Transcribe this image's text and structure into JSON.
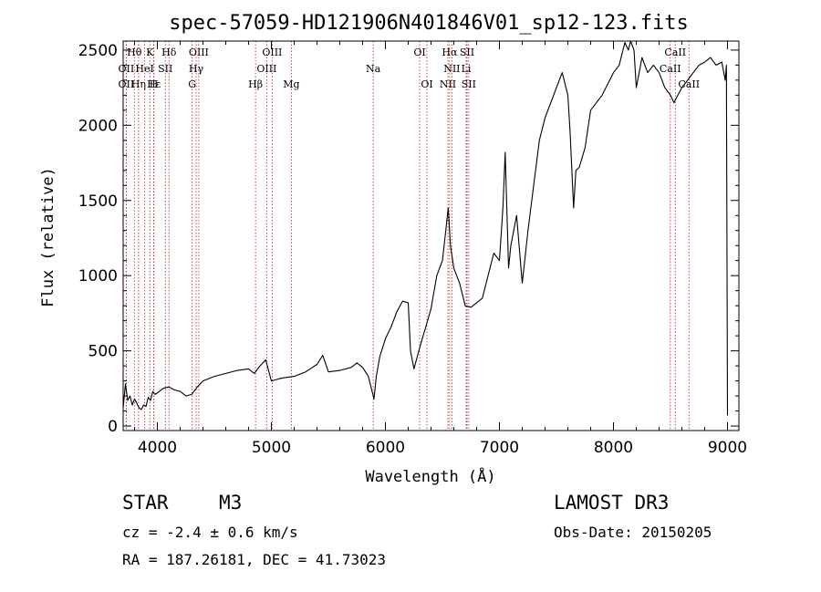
{
  "chart_data": {
    "type": "line",
    "title": "spec-57059-HD121906N401846V01_sp12-123.fits",
    "xlabel": "Wavelength (Å)",
    "ylabel": "Flux (relative)",
    "xlim": [
      3700,
      9100
    ],
    "ylim": [
      -30,
      2560
    ],
    "xticks": [
      4000,
      5000,
      6000,
      7000,
      8000,
      9000
    ],
    "yticks": [
      0,
      500,
      1000,
      1500,
      2000,
      2500
    ],
    "grid": false,
    "series": [
      {
        "name": "spectrum",
        "x": [
          3700,
          3720,
          3740,
          3760,
          3780,
          3800,
          3820,
          3840,
          3860,
          3880,
          3900,
          3920,
          3940,
          3960,
          3980,
          4000,
          4050,
          4100,
          4150,
          4200,
          4250,
          4300,
          4350,
          4400,
          4500,
          4600,
          4700,
          4800,
          4850,
          4900,
          4950,
          5000,
          5050,
          5100,
          5200,
          5300,
          5400,
          5450,
          5500,
          5600,
          5700,
          5750,
          5800,
          5850,
          5900,
          5920,
          5950,
          6000,
          6050,
          6100,
          6150,
          6200,
          6220,
          6250,
          6300,
          6350,
          6400,
          6450,
          6500,
          6530,
          6550,
          6570,
          6600,
          6650,
          6700,
          6750,
          6800,
          6850,
          6900,
          6950,
          7000,
          7030,
          7050,
          7080,
          7100,
          7150,
          7200,
          7250,
          7300,
          7350,
          7400,
          7450,
          7500,
          7550,
          7600,
          7620,
          7650,
          7670,
          7700,
          7750,
          7800,
          7900,
          8000,
          8050,
          8100,
          8130,
          8150,
          8180,
          8200,
          8250,
          8300,
          8350,
          8400,
          8450,
          8500,
          8530,
          8550,
          8600,
          8650,
          8700,
          8750,
          8800,
          8850,
          8900,
          8950,
          8980,
          8990,
          9000
        ],
        "y": [
          120,
          280,
          170,
          200,
          140,
          180,
          150,
          120,
          110,
          140,
          130,
          190,
          170,
          230,
          210,
          220,
          250,
          260,
          240,
          230,
          200,
          210,
          260,
          300,
          330,
          350,
          370,
          380,
          350,
          400,
          440,
          300,
          310,
          320,
          330,
          360,
          410,
          470,
          360,
          370,
          390,
          420,
          390,
          330,
          180,
          330,
          460,
          580,
          660,
          760,
          830,
          820,
          500,
          380,
          520,
          650,
          780,
          1000,
          1100,
          1300,
          1450,
          1200,
          1050,
          950,
          800,
          790,
          820,
          850,
          1000,
          1150,
          1100,
          1450,
          1820,
          1050,
          1200,
          1400,
          950,
          1300,
          1600,
          1900,
          2050,
          2150,
          2250,
          2350,
          2200,
          1950,
          1450,
          1700,
          1720,
          1850,
          2100,
          2200,
          2350,
          2400,
          2550,
          2500,
          2560,
          2500,
          2250,
          2450,
          2350,
          2400,
          2350,
          2250,
          2200,
          2150,
          2180,
          2250,
          2300,
          2350,
          2400,
          2420,
          2450,
          2400,
          2420,
          2300,
          2400,
          70
        ]
      }
    ],
    "lines": [
      {
        "label": "Hθ",
        "x": 3798,
        "row": 0
      },
      {
        "label": "K",
        "x": 3934,
        "row": 0
      },
      {
        "label": "Hδ",
        "x": 4102,
        "row": 0
      },
      {
        "label": "OIII",
        "x": 4363,
        "row": 0
      },
      {
        "label": "OIII",
        "x": 5007,
        "row": 0
      },
      {
        "label": "OI",
        "x": 6300,
        "row": 0
      },
      {
        "label": "Hα",
        "x": 6563,
        "row": 0
      },
      {
        "label": "SII",
        "x": 6716,
        "row": 0
      },
      {
        "label": "CaII",
        "x": 8542,
        "row": 0
      },
      {
        "label": "OII",
        "x": 3727,
        "row": 1
      },
      {
        "label": "HeI",
        "x": 3889,
        "row": 1
      },
      {
        "label": "SII",
        "x": 4070,
        "row": 1
      },
      {
        "label": "Hγ",
        "x": 4340,
        "row": 1
      },
      {
        "label": "OIII",
        "x": 4959,
        "row": 1
      },
      {
        "label": "Na",
        "x": 5893,
        "row": 1
      },
      {
        "label": "NII",
        "x": 6583,
        "row": 1
      },
      {
        "label": "Li",
        "x": 6708,
        "row": 1
      },
      {
        "label": "CaII",
        "x": 8498,
        "row": 1
      },
      {
        "label": "OII",
        "x": 3727,
        "row": 2
      },
      {
        "label": "Hε",
        "x": 3970,
        "row": 2
      },
      {
        "label": "Hη",
        "x": 3835,
        "row": 2
      },
      {
        "label": "H",
        "x": 3968,
        "row": 2
      },
      {
        "label": "G",
        "x": 4305,
        "row": 2
      },
      {
        "label": "Hβ",
        "x": 4861,
        "row": 2
      },
      {
        "label": "Mg",
        "x": 5175,
        "row": 2
      },
      {
        "label": "OI",
        "x": 6364,
        "row": 2
      },
      {
        "label": "NII",
        "x": 6548,
        "row": 2
      },
      {
        "label": "SII",
        "x": 6731,
        "row": 2
      },
      {
        "label": "CaII",
        "x": 8662,
        "row": 2
      }
    ]
  },
  "info": {
    "object_class": "STAR",
    "subclass": "M3",
    "survey": "LAMOST DR3",
    "redshift": "cz = -2.4 ± 0.6 km/s",
    "obs_date": "Obs-Date: 20150205",
    "coords": "RA = 187.26181, DEC =  41.73023"
  }
}
